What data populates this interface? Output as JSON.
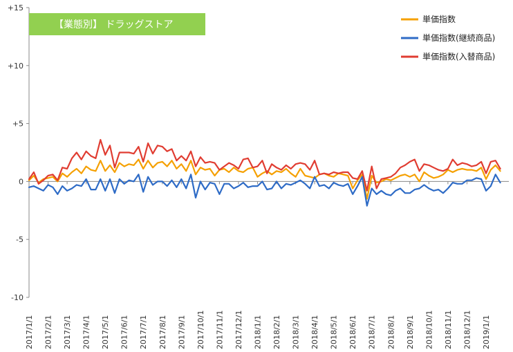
{
  "chart_data": {
    "type": "line",
    "title": "【業態別】 ドラッグストア",
    "title_bg": "#92D050",
    "ylim": [
      -10,
      15
    ],
    "yticks": [
      15,
      10,
      5,
      0,
      -5,
      -10
    ],
    "ytick_labels": [
      "+15",
      "+10",
      "+5",
      "0",
      "-5",
      "-10"
    ],
    "x_tick_labels": [
      "2017/1/1",
      "2017/2/1",
      "2017/3/1",
      "2017/4/1",
      "2017/5/1",
      "2017/6/1",
      "2017/7/1",
      "2017/8/1",
      "2017/9/1",
      "2017/10/1",
      "2017/11/1",
      "2017/12/1",
      "2018/1/1",
      "2018/2/1",
      "2018/3/1",
      "2018/4/1",
      "2018/5/1",
      "2018/6/1",
      "2018/7/1",
      "2018/8/1",
      "2018/9/1",
      "2018/10/1",
      "2018/11/1",
      "2018/12/1",
      "2019/1/1"
    ],
    "x_range": [
      0,
      25.2
    ],
    "grid": false,
    "legend_position": "top-right",
    "series": [
      {
        "name": "単価指数",
        "color": "#F5A000",
        "points": [
          [
            0.0,
            0.1
          ],
          [
            0.25,
            0.5
          ],
          [
            0.5,
            -0.1
          ],
          [
            0.75,
            0.2
          ],
          [
            1.0,
            0.3
          ],
          [
            1.25,
            0.4
          ],
          [
            1.5,
            0.0
          ],
          [
            1.75,
            0.7
          ],
          [
            2.0,
            0.4
          ],
          [
            2.25,
            0.8
          ],
          [
            2.5,
            1.1
          ],
          [
            2.75,
            0.7
          ],
          [
            3.0,
            1.3
          ],
          [
            3.25,
            1.0
          ],
          [
            3.5,
            0.9
          ],
          [
            3.75,
            1.8
          ],
          [
            4.0,
            0.9
          ],
          [
            4.25,
            1.4
          ],
          [
            4.5,
            0.8
          ],
          [
            4.75,
            1.6
          ],
          [
            5.0,
            1.3
          ],
          [
            5.25,
            1.5
          ],
          [
            5.5,
            1.4
          ],
          [
            5.75,
            1.9
          ],
          [
            6.0,
            1.1
          ],
          [
            6.25,
            1.8
          ],
          [
            6.5,
            1.2
          ],
          [
            6.75,
            1.6
          ],
          [
            7.0,
            1.7
          ],
          [
            7.25,
            1.3
          ],
          [
            7.5,
            1.8
          ],
          [
            7.75,
            1.1
          ],
          [
            8.0,
            1.5
          ],
          [
            8.25,
            0.9
          ],
          [
            8.5,
            1.8
          ],
          [
            8.75,
            0.6
          ],
          [
            9.0,
            1.2
          ],
          [
            9.25,
            1.0
          ],
          [
            9.5,
            1.1
          ],
          [
            9.75,
            0.5
          ],
          [
            10.0,
            1.0
          ],
          [
            10.25,
            1.1
          ],
          [
            10.5,
            0.8
          ],
          [
            10.75,
            1.2
          ],
          [
            11.0,
            0.9
          ],
          [
            11.25,
            0.8
          ],
          [
            11.5,
            1.1
          ],
          [
            11.75,
            1.2
          ],
          [
            12.0,
            0.4
          ],
          [
            12.25,
            0.7
          ],
          [
            12.5,
            0.9
          ],
          [
            12.75,
            0.6
          ],
          [
            13.0,
            0.9
          ],
          [
            13.25,
            0.8
          ],
          [
            13.5,
            1.1
          ],
          [
            13.75,
            0.7
          ],
          [
            14.0,
            0.4
          ],
          [
            14.25,
            1.1
          ],
          [
            14.5,
            0.5
          ],
          [
            14.75,
            0.4
          ],
          [
            15.0,
            0.3
          ],
          [
            15.25,
            0.6
          ],
          [
            15.5,
            0.7
          ],
          [
            15.75,
            0.5
          ],
          [
            16.0,
            0.4
          ],
          [
            16.25,
            0.7
          ],
          [
            16.5,
            0.6
          ],
          [
            16.75,
            0.5
          ],
          [
            17.0,
            -0.6
          ],
          [
            17.25,
            0.1
          ],
          [
            17.5,
            0.6
          ],
          [
            17.75,
            -1.5
          ],
          [
            18.0,
            0.5
          ],
          [
            18.25,
            -0.1
          ],
          [
            18.5,
            0.0
          ],
          [
            18.75,
            0.2
          ],
          [
            19.0,
            0.1
          ],
          [
            19.25,
            0.3
          ],
          [
            19.5,
            0.5
          ],
          [
            19.75,
            0.6
          ],
          [
            20.0,
            0.4
          ],
          [
            20.25,
            0.6
          ],
          [
            20.5,
            0.0
          ],
          [
            20.75,
            0.8
          ],
          [
            21.0,
            0.5
          ],
          [
            21.25,
            0.3
          ],
          [
            21.5,
            0.4
          ],
          [
            21.75,
            0.6
          ],
          [
            22.0,
            1.0
          ],
          [
            22.25,
            0.8
          ],
          [
            22.5,
            1.0
          ],
          [
            22.75,
            1.1
          ],
          [
            23.0,
            1.0
          ],
          [
            23.25,
            1.0
          ],
          [
            23.5,
            0.9
          ],
          [
            23.75,
            1.2
          ],
          [
            24.0,
            0.2
          ],
          [
            24.25,
            1.0
          ],
          [
            24.5,
            1.4
          ],
          [
            24.75,
            0.9
          ]
        ]
      },
      {
        "name": "単価指数(継続商品)",
        "color": "#2E6BC6",
        "points": [
          [
            0.0,
            -0.5
          ],
          [
            0.25,
            -0.4
          ],
          [
            0.5,
            -0.6
          ],
          [
            0.75,
            -0.8
          ],
          [
            1.0,
            -0.3
          ],
          [
            1.25,
            -0.5
          ],
          [
            1.5,
            -1.1
          ],
          [
            1.75,
            -0.4
          ],
          [
            2.0,
            -0.8
          ],
          [
            2.25,
            -0.6
          ],
          [
            2.5,
            -0.3
          ],
          [
            2.75,
            -0.4
          ],
          [
            3.0,
            0.2
          ],
          [
            3.25,
            -0.7
          ],
          [
            3.5,
            -0.7
          ],
          [
            3.75,
            0.2
          ],
          [
            4.0,
            -0.8
          ],
          [
            4.25,
            0.2
          ],
          [
            4.5,
            -1.0
          ],
          [
            4.75,
            0.2
          ],
          [
            5.0,
            -0.2
          ],
          [
            5.25,
            0.1
          ],
          [
            5.5,
            0.0
          ],
          [
            5.75,
            0.6
          ],
          [
            6.0,
            -0.9
          ],
          [
            6.25,
            0.4
          ],
          [
            6.5,
            -0.3
          ],
          [
            6.75,
            0.0
          ],
          [
            7.0,
            0.0
          ],
          [
            7.25,
            -0.4
          ],
          [
            7.5,
            0.1
          ],
          [
            7.75,
            -0.5
          ],
          [
            8.0,
            0.2
          ],
          [
            8.25,
            -0.6
          ],
          [
            8.5,
            0.6
          ],
          [
            8.75,
            -1.4
          ],
          [
            9.0,
            0.0
          ],
          [
            9.25,
            -0.7
          ],
          [
            9.5,
            -0.1
          ],
          [
            9.75,
            -0.2
          ],
          [
            10.0,
            -1.1
          ],
          [
            10.25,
            -0.2
          ],
          [
            10.5,
            -0.2
          ],
          [
            10.75,
            -0.6
          ],
          [
            11.0,
            -0.4
          ],
          [
            11.25,
            -0.1
          ],
          [
            11.5,
            -0.5
          ],
          [
            11.75,
            -0.4
          ],
          [
            12.0,
            -0.4
          ],
          [
            12.25,
            0.0
          ],
          [
            12.5,
            -0.7
          ],
          [
            12.75,
            -0.6
          ],
          [
            13.0,
            0.0
          ],
          [
            13.25,
            -0.6
          ],
          [
            13.5,
            -0.2
          ],
          [
            13.75,
            -0.3
          ],
          [
            14.0,
            -0.1
          ],
          [
            14.25,
            0.1
          ],
          [
            14.5,
            -0.2
          ],
          [
            14.75,
            -0.6
          ],
          [
            15.0,
            0.4
          ],
          [
            15.25,
            -0.4
          ],
          [
            15.5,
            -0.3
          ],
          [
            15.75,
            -0.6
          ],
          [
            16.0,
            -0.1
          ],
          [
            16.25,
            -0.3
          ],
          [
            16.5,
            -0.4
          ],
          [
            16.75,
            -0.2
          ],
          [
            17.0,
            -1.1
          ],
          [
            17.25,
            -0.4
          ],
          [
            17.5,
            0.4
          ],
          [
            17.75,
            -2.1
          ],
          [
            18.0,
            -0.6
          ],
          [
            18.25,
            -1.1
          ],
          [
            18.5,
            -0.8
          ],
          [
            18.75,
            -1.1
          ],
          [
            19.0,
            -1.2
          ],
          [
            19.25,
            -0.8
          ],
          [
            19.5,
            -0.6
          ],
          [
            19.75,
            -1.0
          ],
          [
            20.0,
            -1.0
          ],
          [
            20.25,
            -0.7
          ],
          [
            20.5,
            -0.6
          ],
          [
            20.75,
            -0.3
          ],
          [
            21.0,
            -0.6
          ],
          [
            21.25,
            -0.8
          ],
          [
            21.5,
            -0.7
          ],
          [
            21.75,
            -1.0
          ],
          [
            22.0,
            -0.6
          ],
          [
            22.25,
            -0.1
          ],
          [
            22.5,
            -0.2
          ],
          [
            22.75,
            -0.2
          ],
          [
            23.0,
            0.1
          ],
          [
            23.25,
            0.1
          ],
          [
            23.5,
            0.3
          ],
          [
            23.75,
            0.2
          ],
          [
            24.0,
            -0.8
          ],
          [
            24.25,
            -0.4
          ],
          [
            24.5,
            0.6
          ],
          [
            24.75,
            -0.1
          ]
        ]
      },
      {
        "name": "単価指数(入替商品)",
        "color": "#E03C31",
        "points": [
          [
            0.0,
            0.2
          ],
          [
            0.25,
            0.8
          ],
          [
            0.5,
            -0.2
          ],
          [
            0.75,
            0.1
          ],
          [
            1.0,
            0.5
          ],
          [
            1.25,
            0.6
          ],
          [
            1.5,
            0.1
          ],
          [
            1.75,
            1.2
          ],
          [
            2.0,
            1.1
          ],
          [
            2.25,
            2.0
          ],
          [
            2.5,
            2.5
          ],
          [
            2.75,
            1.9
          ],
          [
            3.0,
            2.6
          ],
          [
            3.25,
            2.2
          ],
          [
            3.5,
            2.0
          ],
          [
            3.75,
            3.6
          ],
          [
            4.0,
            2.3
          ],
          [
            4.25,
            3.1
          ],
          [
            4.5,
            1.2
          ],
          [
            4.75,
            2.5
          ],
          [
            5.0,
            2.5
          ],
          [
            5.25,
            2.5
          ],
          [
            5.5,
            2.4
          ],
          [
            5.75,
            3.0
          ],
          [
            6.0,
            1.7
          ],
          [
            6.25,
            3.3
          ],
          [
            6.5,
            2.4
          ],
          [
            6.75,
            3.1
          ],
          [
            7.0,
            3.0
          ],
          [
            7.25,
            2.6
          ],
          [
            7.5,
            2.8
          ],
          [
            7.75,
            1.8
          ],
          [
            8.0,
            2.2
          ],
          [
            8.25,
            1.8
          ],
          [
            8.5,
            2.6
          ],
          [
            8.75,
            1.3
          ],
          [
            9.0,
            2.1
          ],
          [
            9.25,
            1.6
          ],
          [
            9.5,
            1.7
          ],
          [
            9.75,
            1.6
          ],
          [
            10.0,
            1.0
          ],
          [
            10.25,
            1.3
          ],
          [
            10.5,
            1.6
          ],
          [
            10.75,
            1.4
          ],
          [
            11.0,
            1.1
          ],
          [
            11.25,
            1.9
          ],
          [
            11.5,
            2.0
          ],
          [
            11.75,
            1.2
          ],
          [
            12.0,
            1.3
          ],
          [
            12.25,
            1.8
          ],
          [
            12.5,
            0.7
          ],
          [
            12.75,
            1.5
          ],
          [
            13.0,
            1.2
          ],
          [
            13.25,
            1.0
          ],
          [
            13.5,
            1.4
          ],
          [
            13.75,
            1.1
          ],
          [
            14.0,
            1.5
          ],
          [
            14.25,
            1.6
          ],
          [
            14.5,
            1.5
          ],
          [
            14.75,
            1.0
          ],
          [
            15.0,
            1.8
          ],
          [
            15.25,
            0.6
          ],
          [
            15.5,
            0.7
          ],
          [
            15.75,
            0.6
          ],
          [
            16.0,
            0.8
          ],
          [
            16.25,
            0.7
          ],
          [
            16.5,
            0.8
          ],
          [
            16.75,
            0.8
          ],
          [
            17.0,
            0.3
          ],
          [
            17.25,
            0.2
          ],
          [
            17.5,
            0.9
          ],
          [
            17.75,
            -0.8
          ],
          [
            18.0,
            1.3
          ],
          [
            18.25,
            -0.6
          ],
          [
            18.5,
            0.2
          ],
          [
            18.75,
            0.3
          ],
          [
            19.0,
            0.4
          ],
          [
            19.25,
            0.7
          ],
          [
            19.5,
            1.2
          ],
          [
            19.75,
            1.4
          ],
          [
            20.0,
            1.7
          ],
          [
            20.25,
            1.9
          ],
          [
            20.5,
            0.9
          ],
          [
            20.75,
            1.5
          ],
          [
            21.0,
            1.4
          ],
          [
            21.25,
            1.2
          ],
          [
            21.5,
            1.0
          ],
          [
            21.75,
            0.9
          ],
          [
            22.0,
            1.1
          ],
          [
            22.25,
            1.9
          ],
          [
            22.5,
            1.4
          ],
          [
            22.75,
            1.6
          ],
          [
            23.0,
            1.5
          ],
          [
            23.25,
            1.3
          ],
          [
            23.5,
            1.4
          ],
          [
            23.75,
            1.7
          ],
          [
            24.0,
            0.7
          ],
          [
            24.25,
            1.7
          ],
          [
            24.5,
            1.8
          ],
          [
            24.75,
            1.1
          ]
        ]
      }
    ]
  }
}
